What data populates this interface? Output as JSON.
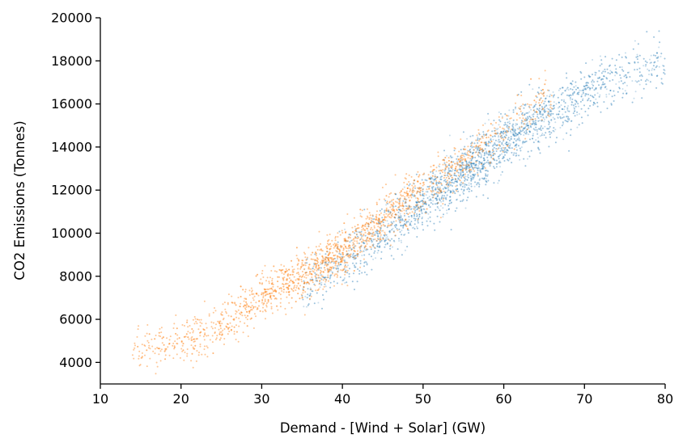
{
  "chart_data": {
    "type": "scatter",
    "title": "",
    "xlabel": "Demand - [Wind + Solar] (GW)",
    "ylabel": "CO2 Emissions (Tonnes)",
    "xlim": [
      10,
      80
    ],
    "ylim": [
      3000,
      20000
    ],
    "x_ticks": [
      10,
      20,
      30,
      40,
      50,
      60,
      70,
      80
    ],
    "y_ticks": [
      4000,
      6000,
      8000,
      10000,
      12000,
      14000,
      16000,
      18000,
      20000
    ],
    "grid": false,
    "legend": "none",
    "point_alpha": 0.25,
    "series": [
      {
        "color": "#1f77b4",
        "approx_count": 3500,
        "trend_x": [
          35,
          40,
          45,
          50,
          55,
          60,
          65,
          70,
          75,
          80
        ],
        "trend_y": [
          7400,
          8600,
          10000,
          11400,
          12800,
          14200,
          15400,
          16400,
          17400,
          18000
        ],
        "x_range": [
          35,
          80
        ]
      },
      {
        "color": "#ff7f0e",
        "approx_count": 3500,
        "trend_x": [
          14,
          20,
          25,
          30,
          35,
          40,
          45,
          50,
          55,
          60,
          65
        ],
        "trend_y": [
          4600,
          4900,
          5700,
          7100,
          8000,
          9100,
          10600,
          12100,
          13200,
          14700,
          16300
        ],
        "x_range": [
          14,
          66
        ]
      }
    ]
  }
}
